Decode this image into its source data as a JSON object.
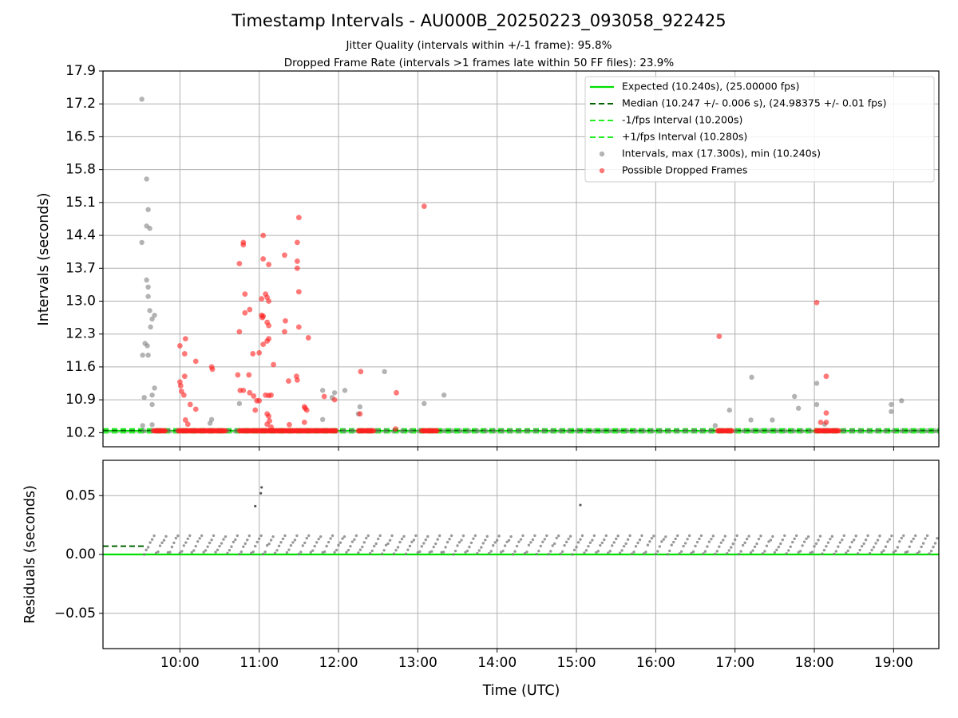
{
  "title": "Timestamp Intervals - AU000B_20250223_093058_922425",
  "subtitle_1": "Jitter Quality (intervals within +/-1 frame): 95.8%",
  "subtitle_2": "Dropped Frame Rate (intervals >1 frames late within 50 FF files): 23.9%",
  "colors": {
    "expected": "#00e000",
    "median": "#006400",
    "interval_dash": "#22ee22",
    "intervals": "#808080",
    "dropped": "#ff2020",
    "grid": "#b0b0b0"
  },
  "chart_data": [
    {
      "type": "scatter",
      "ylabel": "Intervals (seconds)",
      "ylim": [
        9.9,
        17.9
      ],
      "yticks": [
        "10.2",
        "10.9",
        "11.6",
        "12.3",
        "13.0",
        "13.7",
        "14.4",
        "15.1",
        "15.8",
        "16.5",
        "17.2",
        "17.9"
      ],
      "xlim_hours": [
        9.03,
        19.57
      ],
      "grid": true,
      "legend_placement": "top-right",
      "expected": 10.24,
      "median": 10.247,
      "lower_interval": 10.2,
      "upper_interval": 10.28,
      "legend": [
        {
          "label": "Expected (10.240s), (25.00000 fps)",
          "kind": "solid",
          "color": "#00e000"
        },
        {
          "label": "Median (10.247 +/- 0.006 s), (24.98375 +/- 0.01 fps)",
          "kind": "dash",
          "color": "#006400"
        },
        {
          "label": "-1/fps Interval (10.200s)",
          "kind": "dash",
          "color": "#22ee22"
        },
        {
          "label": "+1/fps Interval (10.280s)",
          "kind": "dash",
          "color": "#22ee22"
        },
        {
          "label": "Intervals, max (17.300s), min (10.240s)",
          "kind": "dot",
          "color": "#808080"
        },
        {
          "label": "Possible Dropped Frames",
          "kind": "dot",
          "color": "#ff2020"
        }
      ],
      "baseline_ranges": [
        [
          9.55,
          19.57
        ]
      ],
      "dropped_baseline_ranges": [
        [
          9.67,
          9.82
        ],
        [
          9.98,
          10.38
        ],
        [
          10.38,
          10.58
        ],
        [
          10.75,
          11.8
        ],
        [
          11.8,
          11.98
        ],
        [
          12.25,
          12.45
        ],
        [
          13.05,
          13.25
        ],
        [
          16.78,
          16.97
        ],
        [
          18.02,
          18.32
        ]
      ],
      "intervals": [
        [
          9.52,
          17.3
        ],
        [
          9.58,
          15.6
        ],
        [
          9.6,
          14.95
        ],
        [
          9.58,
          14.6
        ],
        [
          9.62,
          14.55
        ],
        [
          9.52,
          14.25
        ],
        [
          9.58,
          13.45
        ],
        [
          9.6,
          13.3
        ],
        [
          9.6,
          13.1
        ],
        [
          9.62,
          12.8
        ],
        [
          9.68,
          12.7
        ],
        [
          9.65,
          12.62
        ],
        [
          9.63,
          12.45
        ],
        [
          9.56,
          12.1
        ],
        [
          9.59,
          12.05
        ],
        [
          9.53,
          11.85
        ],
        [
          9.6,
          11.85
        ],
        [
          9.68,
          11.15
        ],
        [
          9.55,
          10.95
        ],
        [
          9.65,
          11.0
        ],
        [
          9.65,
          10.8
        ],
        [
          9.53,
          10.35
        ],
        [
          9.65,
          10.37
        ],
        [
          10.4,
          10.48
        ],
        [
          10.38,
          10.4
        ],
        [
          10.75,
          10.82
        ],
        [
          11.8,
          11.1
        ],
        [
          11.95,
          11.05
        ],
        [
          12.08,
          11.1
        ],
        [
          11.92,
          10.95
        ],
        [
          11.8,
          10.48
        ],
        [
          12.25,
          10.6
        ],
        [
          12.27,
          10.75
        ],
        [
          12.58,
          11.5
        ],
        [
          13.08,
          10.82
        ],
        [
          13.33,
          11.0
        ],
        [
          16.75,
          10.35
        ],
        [
          16.93,
          10.68
        ],
        [
          17.2,
          10.47
        ],
        [
          17.21,
          11.38
        ],
        [
          17.47,
          10.47
        ],
        [
          17.75,
          10.97
        ],
        [
          17.8,
          10.72
        ],
        [
          18.03,
          11.25
        ],
        [
          18.03,
          10.8
        ],
        [
          18.13,
          10.38
        ],
        [
          18.97,
          10.65
        ],
        [
          18.97,
          10.8
        ],
        [
          19.1,
          10.88
        ]
      ],
      "dropped": [
        [
          10.0,
          12.05
        ],
        [
          10.07,
          12.2
        ],
        [
          10.06,
          11.88
        ],
        [
          10.0,
          11.28
        ],
        [
          10.01,
          11.2
        ],
        [
          10.06,
          11.4
        ],
        [
          10.02,
          11.08
        ],
        [
          10.05,
          11.0
        ],
        [
          10.13,
          10.8
        ],
        [
          10.2,
          10.7
        ],
        [
          10.2,
          11.72
        ],
        [
          10.4,
          11.6
        ],
        [
          10.41,
          11.55
        ],
        [
          10.07,
          10.47
        ],
        [
          10.1,
          10.38
        ],
        [
          10.75,
          13.8
        ],
        [
          10.8,
          14.25
        ],
        [
          10.8,
          14.2
        ],
        [
          10.82,
          13.15
        ],
        [
          10.75,
          12.35
        ],
        [
          10.82,
          12.75
        ],
        [
          10.88,
          12.82
        ],
        [
          10.73,
          11.43
        ],
        [
          10.87,
          11.43
        ],
        [
          10.76,
          11.1
        ],
        [
          10.8,
          11.1
        ],
        [
          10.88,
          11.05
        ],
        [
          10.93,
          10.98
        ],
        [
          10.95,
          10.68
        ],
        [
          10.92,
          11.88
        ],
        [
          11.0,
          11.9
        ],
        [
          10.97,
          10.88
        ],
        [
          11.0,
          10.88
        ],
        [
          11.03,
          12.7
        ],
        [
          11.05,
          12.68
        ],
        [
          11.04,
          12.65
        ],
        [
          11.03,
          13.05
        ],
        [
          11.08,
          13.15
        ],
        [
          11.1,
          13.08
        ],
        [
          11.12,
          13.0
        ],
        [
          11.05,
          14.4
        ],
        [
          11.05,
          13.9
        ],
        [
          11.12,
          13.78
        ],
        [
          11.1,
          12.55
        ],
        [
          11.12,
          12.48
        ],
        [
          11.05,
          12.08
        ],
        [
          11.1,
          12.15
        ],
        [
          11.12,
          12.2
        ],
        [
          11.18,
          11.65
        ],
        [
          11.08,
          11.0
        ],
        [
          11.12,
          10.99
        ],
        [
          11.15,
          11.0
        ],
        [
          11.1,
          10.6
        ],
        [
          11.12,
          10.55
        ],
        [
          11.13,
          10.45
        ],
        [
          11.1,
          10.38
        ],
        [
          11.15,
          10.32
        ],
        [
          11.32,
          13.98
        ],
        [
          11.33,
          12.58
        ],
        [
          11.32,
          12.35
        ],
        [
          11.37,
          11.3
        ],
        [
          11.47,
          11.4
        ],
        [
          11.48,
          11.32
        ],
        [
          11.5,
          14.78
        ],
        [
          11.48,
          14.25
        ],
        [
          11.48,
          13.85
        ],
        [
          11.48,
          13.7
        ],
        [
          11.5,
          13.2
        ],
        [
          11.5,
          12.45
        ],
        [
          11.62,
          12.22
        ],
        [
          11.57,
          10.75
        ],
        [
          11.58,
          10.72
        ],
        [
          11.6,
          10.68
        ],
        [
          11.57,
          10.42
        ],
        [
          11.38,
          10.37
        ],
        [
          11.82,
          10.97
        ],
        [
          11.95,
          10.9
        ],
        [
          12.28,
          11.5
        ],
        [
          12.27,
          10.6
        ],
        [
          12.73,
          11.05
        ],
        [
          12.72,
          10.28
        ],
        [
          13.08,
          15.02
        ],
        [
          16.8,
          12.25
        ],
        [
          18.03,
          12.97
        ],
        [
          18.15,
          11.4
        ],
        [
          18.08,
          10.42
        ],
        [
          18.15,
          10.42
        ],
        [
          18.15,
          10.62
        ]
      ]
    },
    {
      "type": "scatter",
      "ylabel": "Residuals (seconds)",
      "ylim": [
        -0.08,
        0.08
      ],
      "yticks": [
        "−0.05",
        "0.00",
        "0.05"
      ],
      "xlabel": "Time (UTC)",
      "xticks": [
        "10:00",
        "11:00",
        "12:00",
        "13:00",
        "14:00",
        "15:00",
        "16:00",
        "17:00",
        "18:00",
        "19:00"
      ],
      "xlim_hours": [
        9.03,
        19.57
      ],
      "grid": true,
      "expected_residual": 0.0,
      "median_residual": 0.007,
      "median_line_range": [
        9.03,
        9.55
      ],
      "band": {
        "start": 9.55,
        "end": 19.57,
        "low": 0.0,
        "high": 0.016
      },
      "outliers": [
        [
          10.95,
          0.041
        ],
        [
          11.02,
          0.052
        ],
        [
          11.03,
          0.057
        ],
        [
          15.05,
          0.042
        ]
      ]
    }
  ]
}
